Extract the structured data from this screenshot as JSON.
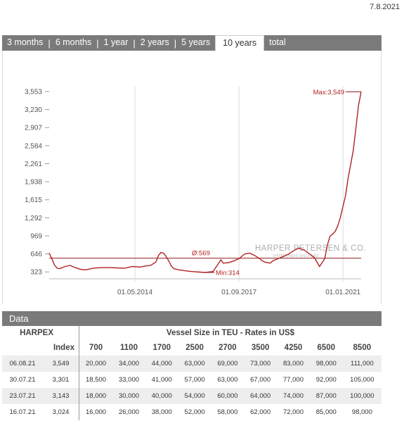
{
  "date": "7.8.2021",
  "tabs": [
    {
      "label": "3 months",
      "active": false
    },
    {
      "label": "6 months",
      "active": false
    },
    {
      "label": "1 year",
      "active": false
    },
    {
      "label": "2 years",
      "active": false
    },
    {
      "label": "5 years",
      "active": false
    },
    {
      "label": "10 years",
      "active": true
    },
    {
      "label": "total",
      "active": false
    }
  ],
  "chart_data": {
    "type": "line",
    "y_ticks": [
      "3,553",
      "3,230",
      "2,907",
      "2,584",
      "2,261",
      "1,938",
      "1,615",
      "1,292",
      "969",
      "646",
      "323"
    ],
    "x_ticks": [
      "01.05.2014",
      "01.09.2017",
      "01.01.2021"
    ],
    "ylim": [
      200,
      3553
    ],
    "color": "#b22222",
    "avg_label": "Ø:569",
    "avg_value": 569,
    "min_label": "Min:314",
    "max_label": "Max:3,549",
    "watermark": "HARPER PETERSEN & CO.",
    "watermark_sub": "SHIPBROKERS SINCE 1963",
    "x_dates": [
      "2011-08",
      "2011-09",
      "2011-10",
      "2011-11",
      "2011-12",
      "2012-02",
      "2012-04",
      "2012-06",
      "2012-08",
      "2012-10",
      "2013-01",
      "2013-04",
      "2013-07",
      "2013-10",
      "2014-01",
      "2014-04",
      "2014-07",
      "2014-09",
      "2014-11",
      "2015-01",
      "2015-02",
      "2015-03",
      "2015-04",
      "2015-05",
      "2015-06",
      "2015-07",
      "2015-08",
      "2015-10",
      "2016-01",
      "2016-03",
      "2016-06",
      "2016-08",
      "2016-11",
      "2017-01",
      "2017-02",
      "2017-03",
      "2017-05",
      "2017-07",
      "2017-09",
      "2017-11",
      "2018-01",
      "2018-03",
      "2018-05",
      "2018-06",
      "2018-07",
      "2018-09",
      "2018-10",
      "2018-12",
      "2019-02",
      "2019-04",
      "2019-06",
      "2019-08",
      "2019-10",
      "2019-12",
      "2020-02",
      "2020-04",
      "2020-06",
      "2020-07",
      "2020-08",
      "2020-09",
      "2020-10",
      "2020-11",
      "2020-12",
      "2021-01",
      "2021-02",
      "2021-03",
      "2021-04",
      "2021-05",
      "2021-06",
      "2021-07",
      "2021-08"
    ],
    "values": [
      660,
      560,
      450,
      390,
      380,
      420,
      440,
      400,
      370,
      360,
      390,
      400,
      400,
      395,
      390,
      420,
      410,
      430,
      440,
      500,
      620,
      670,
      660,
      600,
      520,
      430,
      380,
      360,
      340,
      330,
      320,
      314,
      330,
      470,
      540,
      480,
      490,
      520,
      560,
      640,
      660,
      620,
      560,
      520,
      500,
      480,
      520,
      560,
      600,
      640,
      700,
      750,
      720,
      650,
      580,
      420,
      560,
      800,
      960,
      1000,
      1050,
      1150,
      1300,
      1500,
      1700,
      2000,
      2250,
      2500,
      2900,
      3301,
      3549
    ]
  },
  "table": {
    "title": "Data",
    "col1_head": "HARPEX",
    "col1_sub": "Index",
    "group_head": "Vessel Size in TEU - Rates in US$",
    "sizes": [
      "700",
      "1100",
      "1700",
      "2500",
      "2700",
      "3500",
      "4250",
      "6500",
      "8500"
    ],
    "rows": [
      {
        "date": "06.08.21",
        "index": "3,549",
        "rates": [
          "20,000",
          "34,000",
          "44,000",
          "63,000",
          "69,000",
          "73,000",
          "83,000",
          "98,000",
          "111,000"
        ]
      },
      {
        "date": "30.07.21",
        "index": "3,301",
        "rates": [
          "18,500",
          "33,000",
          "41,000",
          "57,000",
          "63,000",
          "67,000",
          "77,000",
          "92,000",
          "105,000"
        ]
      },
      {
        "date": "23.07.21",
        "index": "3,143",
        "rates": [
          "18,000",
          "30,000",
          "40,000",
          "54,000",
          "60,000",
          "64,000",
          "74,000",
          "87,000",
          "100,000"
        ]
      },
      {
        "date": "16.07.21",
        "index": "3,024",
        "rates": [
          "16,000",
          "26,000",
          "38,000",
          "52,000",
          "58,000",
          "62,000",
          "72,000",
          "85,000",
          "98,000"
        ]
      }
    ]
  }
}
